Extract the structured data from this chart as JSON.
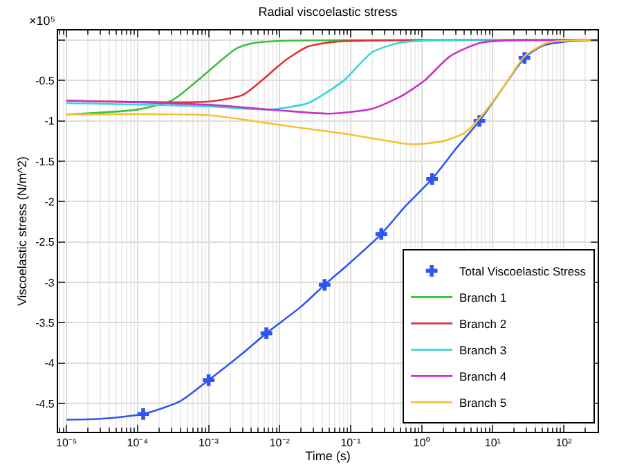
{
  "chart_data": {
    "type": "line",
    "title": "Radial viscoelastic stress",
    "xlabel": "Time (s)",
    "ylabel": "Viscoelastic stress (N/m^2)",
    "annotations": [
      "×10⁵"
    ],
    "log": "x",
    "grid": true,
    "legend": "bottom right",
    "line_style": "solid",
    "xlim": [
      7.6e-06,
      300
    ],
    "xticks": [
      {
        "value": 1e-05,
        "label": "10⁻⁵"
      },
      {
        "value": 0.0001,
        "label": "10⁻⁴"
      },
      {
        "value": 0.001,
        "label": "10⁻³"
      },
      {
        "value": 0.01,
        "label": "10⁻²"
      },
      {
        "value": 0.1,
        "label": "10⁻¹"
      },
      {
        "value": 1,
        "label": "10⁰"
      },
      {
        "value": 10,
        "label": "10¹"
      },
      {
        "value": 100,
        "label": "10²"
      }
    ],
    "ylim": [
      -4.85,
      0.12
    ],
    "yticks": [
      {
        "value": 0,
        "label": null
      },
      -0.5,
      -1,
      -1.5,
      -2,
      -2.5,
      -3,
      -3.5,
      -4,
      -4.5
    ],
    "series": [
      {
        "name": "Total Viscoelastic Stress",
        "type": "scatter",
        "color": "#2e54f5",
        "marker": "cross",
        "x": [
          0.00012,
          0.001,
          0.0065,
          0.043,
          0.27,
          1.4,
          6.5,
          28
        ],
        "values": [
          -4.63,
          -4.21,
          -3.63,
          -3.03,
          -2.4,
          -1.72,
          -1.0,
          -0.22
        ]
      },
      {
        "color": "#2e54f5",
        "marker": "none",
        "x": [
          1e-05,
          3e-05,
          0.00012,
          0.0004,
          0.001,
          0.003,
          0.0065,
          0.02,
          0.043,
          0.1,
          0.27,
          0.6,
          1.4,
          3,
          6.5,
          15,
          28,
          50,
          100,
          300
        ],
        "values": [
          -4.7,
          -4.69,
          -4.63,
          -4.47,
          -4.21,
          -3.88,
          -3.63,
          -3.3,
          -3.03,
          -2.75,
          -2.4,
          -2.05,
          -1.72,
          -1.35,
          -1.0,
          -0.55,
          -0.22,
          -0.07,
          -0.02,
          0
        ]
      },
      {
        "name": "Branch 1",
        "color": "#3cbf3c",
        "x": [
          1e-05,
          0.0001,
          0.0003,
          0.0007,
          0.0015,
          0.0025,
          0.004,
          0.01,
          300
        ],
        "values": [
          -0.92,
          -0.86,
          -0.75,
          -0.5,
          -0.25,
          -0.1,
          -0.04,
          -0.01,
          0
        ]
      },
      {
        "name": "Branch 2",
        "color": "#e03030",
        "x": [
          1e-05,
          0.001,
          0.003,
          0.0056,
          0.012,
          0.025,
          0.06,
          300
        ],
        "values": [
          -0.75,
          -0.76,
          -0.68,
          -0.5,
          -0.25,
          -0.08,
          -0.02,
          0
        ]
      },
      {
        "name": "Branch 3",
        "color": "#30d8d8",
        "x": [
          1e-05,
          0.001,
          0.007,
          0.025,
          0.08,
          0.2,
          0.5,
          2,
          300
        ],
        "values": [
          -0.78,
          -0.82,
          -0.86,
          -0.78,
          -0.5,
          -0.15,
          -0.03,
          0,
          0
        ]
      },
      {
        "name": "Branch 4",
        "color": "#cc30cc",
        "x": [
          1e-05,
          0.001,
          0.01,
          0.05,
          0.2,
          0.5,
          1.1,
          2.5,
          7,
          300
        ],
        "values": [
          -0.75,
          -0.8,
          -0.87,
          -0.91,
          -0.85,
          -0.7,
          -0.5,
          -0.2,
          -0.03,
          0
        ]
      },
      {
        "name": "Branch 5",
        "color": "#f5c030",
        "x": [
          1e-05,
          0.001,
          0.01,
          0.1,
          0.74,
          2,
          4,
          6.5,
          15,
          28,
          60,
          300
        ],
        "values": [
          -0.92,
          -0.93,
          -1.05,
          -1.17,
          -1.29,
          -1.25,
          -1.15,
          -0.97,
          -0.55,
          -0.2,
          -0.03,
          0
        ]
      }
    ]
  }
}
